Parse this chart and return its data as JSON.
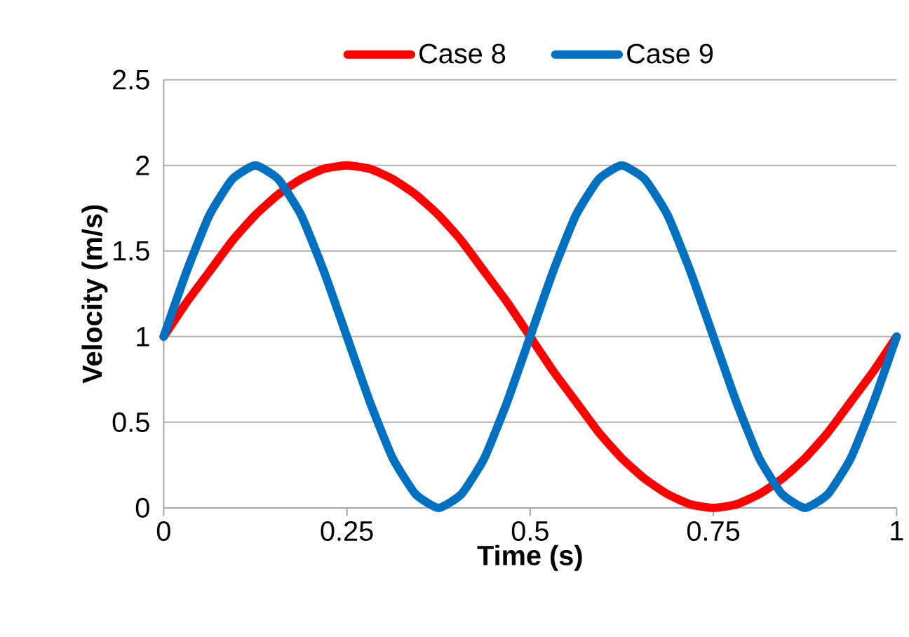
{
  "chart_data": {
    "type": "line",
    "xlabel": "Time (s)",
    "ylabel": "Velocity (m/s)",
    "x": [
      0,
      0.03125,
      0.0625,
      0.09375,
      0.125,
      0.15625,
      0.1875,
      0.21875,
      0.25,
      0.28125,
      0.3125,
      0.34375,
      0.375,
      0.40625,
      0.4375,
      0.46875,
      0.5,
      0.53125,
      0.5625,
      0.59375,
      0.625,
      0.65625,
      0.6875,
      0.71875,
      0.75,
      0.78125,
      0.8125,
      0.84375,
      0.875,
      0.90625,
      0.9375,
      0.96875,
      1
    ],
    "series": [
      {
        "name": "Case 8",
        "color": "#ff0000",
        "values": [
          1,
          1.2,
          1.38,
          1.56,
          1.71,
          1.83,
          1.92,
          1.98,
          2,
          1.98,
          1.92,
          1.83,
          1.71,
          1.56,
          1.38,
          1.2,
          1,
          0.8,
          0.62,
          0.44,
          0.29,
          0.17,
          0.08,
          0.02,
          0,
          0.02,
          0.08,
          0.17,
          0.29,
          0.44,
          0.62,
          0.8,
          1
        ]
      },
      {
        "name": "Case 9",
        "color": "#0070c0",
        "values": [
          1,
          1.38,
          1.71,
          1.92,
          2,
          1.92,
          1.71,
          1.38,
          1,
          0.62,
          0.29,
          0.08,
          0,
          0.08,
          0.29,
          0.62,
          1,
          1.38,
          1.71,
          1.92,
          2,
          1.92,
          1.71,
          1.38,
          1,
          0.62,
          0.29,
          0.08,
          0,
          0.08,
          0.29,
          0.62,
          1
        ]
      }
    ],
    "xlim": [
      0,
      1
    ],
    "xticks": [
      0,
      0.25,
      0.5,
      0.75,
      1
    ],
    "ylim": [
      0,
      2.5
    ],
    "yticks": [
      0,
      0.5,
      1,
      1.5,
      2,
      2.5
    ],
    "grid": "y",
    "legend": "top",
    "marker": "none",
    "line_style": "solid"
  }
}
